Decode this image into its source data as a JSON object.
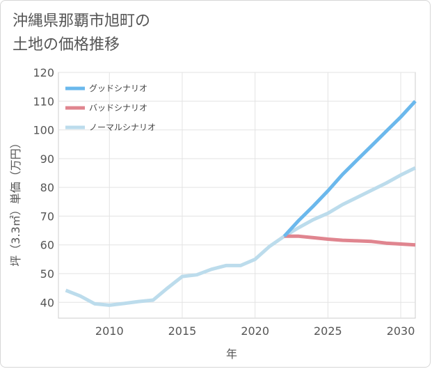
{
  "title_lines": [
    "沖縄県那覇市旭町の",
    "土地の価格推移"
  ],
  "chart_data": {
    "type": "line",
    "title": "沖縄県那覇市旭町の土地の価格推移",
    "xlabel": "年",
    "ylabel": "坪（3.3㎡）単価（万円）",
    "xlim": [
      2006.5,
      2031
    ],
    "ylim": [
      34.5,
      120
    ],
    "xticks": [
      2010,
      2015,
      2020,
      2025,
      2030
    ],
    "yticks": [
      40,
      50,
      60,
      70,
      80,
      90,
      100,
      110,
      120
    ],
    "grid": true,
    "legend_position": "top-left",
    "series": [
      {
        "name": "グッドシナリオ",
        "color": "#6bb8ec",
        "x": [
          2022,
          2023,
          2024,
          2025,
          2026,
          2027,
          2028,
          2029,
          2030,
          2031
        ],
        "y": [
          63,
          68.5,
          73.5,
          78.8,
          84.5,
          89.5,
          94.5,
          99.5,
          104.5,
          110
        ]
      },
      {
        "name": "バッドシナリオ",
        "color": "#e0858f",
        "x": [
          2022,
          2023,
          2024,
          2025,
          2026,
          2027,
          2028,
          2029,
          2030,
          2031
        ],
        "y": [
          63,
          63,
          62.5,
          62,
          61.6,
          61.4,
          61.2,
          60.6,
          60.3,
          60
        ]
      },
      {
        "name": "ノーマルシナリオ",
        "color": "#bcdcec",
        "x": [
          2007,
          2008,
          2009,
          2010,
          2011,
          2012,
          2013,
          2014,
          2015,
          2016,
          2017,
          2018,
          2019,
          2020,
          2021,
          2022,
          2023,
          2024,
          2025,
          2026,
          2027,
          2028,
          2029,
          2030,
          2031
        ],
        "y": [
          44.2,
          42.2,
          39.5,
          39,
          39.6,
          40.3,
          40.8,
          45,
          49,
          49.6,
          51.5,
          52.8,
          52.8,
          55,
          59.5,
          63,
          66,
          68.8,
          71,
          74,
          76.5,
          79,
          81.5,
          84.3,
          86.8
        ]
      }
    ]
  }
}
